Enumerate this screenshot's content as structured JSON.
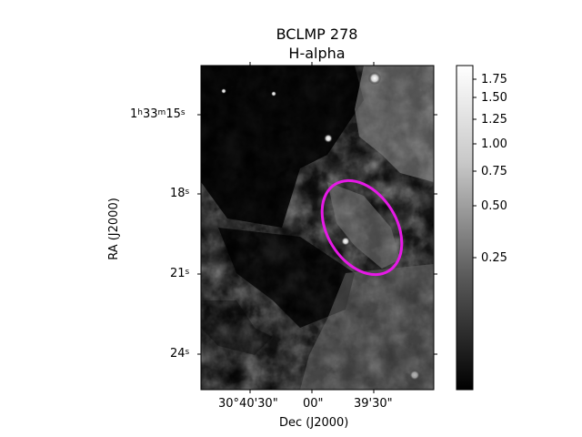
{
  "figure": {
    "title_lines": [
      "BCLMP 278",
      "H-alpha"
    ],
    "xlabel": "Dec (J2000)",
    "ylabel": "RA (J2000)",
    "x_ticks": [
      "30°40'30\"",
      "00\"",
      "39'30\""
    ],
    "y_ticks": [
      {
        "main": "1",
        "h": "h",
        "mid": "33",
        "m": "m",
        "tail": "15",
        "s": "s"
      },
      {
        "tail": "18",
        "s": "s"
      },
      {
        "tail": "21",
        "s": "s"
      },
      {
        "tail": "24",
        "s": "s"
      }
    ],
    "colorbar_ticks": [
      "1.75",
      "1.50",
      "1.25",
      "1.00",
      "0.75",
      "0.50",
      "0.25"
    ],
    "colorbar_values": [
      1.75,
      1.5,
      1.25,
      1.0,
      0.75,
      0.5,
      0.25
    ],
    "colormap": "grayscale",
    "ellipse_color": "#e619e6"
  }
}
